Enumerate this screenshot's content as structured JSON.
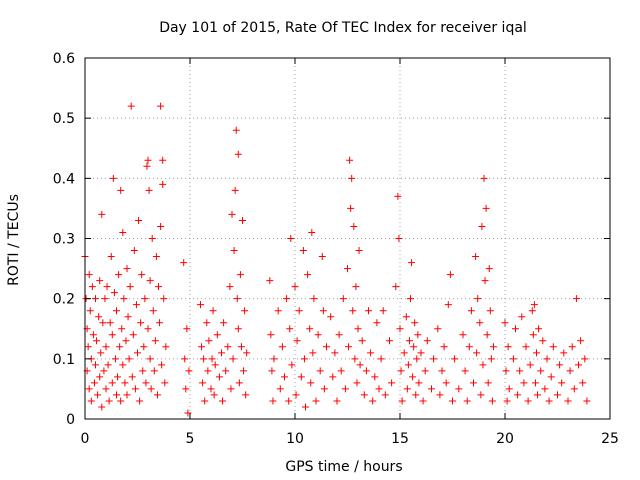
{
  "chart_data": {
    "type": "scatter",
    "title": "Day 101 of 2015, Rate Of TEC Index for receiver iqal",
    "xlabel": "GPS time / hours",
    "ylabel": "ROTI / TECUs",
    "xlim": [
      0,
      25
    ],
    "ylim": [
      0,
      0.6
    ],
    "xticks": [
      0,
      5,
      10,
      15,
      20,
      25
    ],
    "xtick_labels": [
      "0",
      "5",
      "10",
      "15",
      "20",
      "25"
    ],
    "yticks": [
      0,
      0.1,
      0.2,
      0.3,
      0.4,
      0.5,
      0.6
    ],
    "ytick_labels": [
      "0",
      "0.1",
      "0.2",
      "0.3",
      "0.4",
      "0.5",
      "0.6"
    ],
    "grid": true,
    "marker": "plus",
    "color": "#ff0000",
    "series": [
      {
        "name": "ROTI",
        "points": [
          [
            0.0,
            0.27
          ],
          [
            0.05,
            0.2
          ],
          [
            0.1,
            0.15
          ],
          [
            0.1,
            0.08
          ],
          [
            0.15,
            0.12
          ],
          [
            0.2,
            0.24
          ],
          [
            0.2,
            0.05
          ],
          [
            0.25,
            0.18
          ],
          [
            0.3,
            0.1
          ],
          [
            0.3,
            0.03
          ],
          [
            0.35,
            0.22
          ],
          [
            0.4,
            0.14
          ],
          [
            0.45,
            0.06
          ],
          [
            0.5,
            0.2
          ],
          [
            0.5,
            0.09
          ],
          [
            0.55,
            0.13
          ],
          [
            0.6,
            0.04
          ],
          [
            0.65,
            0.17
          ],
          [
            0.7,
            0.23
          ],
          [
            0.7,
            0.07
          ],
          [
            0.75,
            0.11
          ],
          [
            0.8,
            0.34
          ],
          [
            0.8,
            0.02
          ],
          [
            0.85,
            0.16
          ],
          [
            0.9,
            0.08
          ],
          [
            0.95,
            0.2
          ],
          [
            1.0,
            0.05
          ],
          [
            1.0,
            0.12
          ],
          [
            1.05,
            0.22
          ],
          [
            1.1,
            0.09
          ],
          [
            1.15,
            0.03
          ],
          [
            1.2,
            0.16
          ],
          [
            1.25,
            0.27
          ],
          [
            1.3,
            0.06
          ],
          [
            1.3,
            0.14
          ],
          [
            1.35,
            0.4
          ],
          [
            1.4,
            0.21
          ],
          [
            1.45,
            0.1
          ],
          [
            1.5,
            0.04
          ],
          [
            1.5,
            0.18
          ],
          [
            1.55,
            0.07
          ],
          [
            1.6,
            0.24
          ],
          [
            1.65,
            0.12
          ],
          [
            1.7,
            0.38
          ],
          [
            1.7,
            0.03
          ],
          [
            1.75,
            0.15
          ],
          [
            1.8,
            0.31
          ],
          [
            1.8,
            0.09
          ],
          [
            1.85,
            0.2
          ],
          [
            1.9,
            0.06
          ],
          [
            1.95,
            0.13
          ],
          [
            2.0,
            0.25
          ],
          [
            2.0,
            0.04
          ],
          [
            2.05,
            0.17
          ],
          [
            2.1,
            0.1
          ],
          [
            2.15,
            0.22
          ],
          [
            2.2,
            0.52
          ],
          [
            2.25,
            0.07
          ],
          [
            2.3,
            0.14
          ],
          [
            2.35,
            0.28
          ],
          [
            2.4,
            0.05
          ],
          [
            2.45,
            0.19
          ],
          [
            2.5,
            0.11
          ],
          [
            2.55,
            0.33
          ],
          [
            2.6,
            0.03
          ],
          [
            2.65,
            0.16
          ],
          [
            2.7,
            0.24
          ],
          [
            2.75,
            0.08
          ],
          [
            2.8,
            0.12
          ],
          [
            2.85,
            0.2
          ],
          [
            2.9,
            0.06
          ],
          [
            2.95,
            0.42
          ],
          [
            3.0,
            0.43
          ],
          [
            3.0,
            0.15
          ],
          [
            3.05,
            0.38
          ],
          [
            3.1,
            0.1
          ],
          [
            3.1,
            0.23
          ],
          [
            3.15,
            0.05
          ],
          [
            3.2,
            0.3
          ],
          [
            3.25,
            0.18
          ],
          [
            3.3,
            0.08
          ],
          [
            3.35,
            0.13
          ],
          [
            3.4,
            0.27
          ],
          [
            3.45,
            0.04
          ],
          [
            3.5,
            0.22
          ],
          [
            3.55,
            0.16
          ],
          [
            3.6,
            0.32
          ],
          [
            3.6,
            0.52
          ],
          [
            3.65,
            0.09
          ],
          [
            3.7,
            0.43
          ],
          [
            3.7,
            0.39
          ],
          [
            3.75,
            0.2
          ],
          [
            3.8,
            0.06
          ],
          [
            3.85,
            0.12
          ],
          [
            4.7,
            0.26
          ],
          [
            4.75,
            0.1
          ],
          [
            4.8,
            0.05
          ],
          [
            4.85,
            0.15
          ],
          [
            4.9,
            0.01
          ],
          [
            4.95,
            0.08
          ],
          [
            5.5,
            0.19
          ],
          [
            5.55,
            0.12
          ],
          [
            5.6,
            0.06
          ],
          [
            5.65,
            0.1
          ],
          [
            5.7,
            0.03
          ],
          [
            5.8,
            0.16
          ],
          [
            5.85,
            0.08
          ],
          [
            5.9,
            0.13
          ],
          [
            6.0,
            0.05
          ],
          [
            6.05,
            0.1
          ],
          [
            6.1,
            0.18
          ],
          [
            6.15,
            0.04
          ],
          [
            6.2,
            0.09
          ],
          [
            6.3,
            0.14
          ],
          [
            6.4,
            0.07
          ],
          [
            6.5,
            0.11
          ],
          [
            6.55,
            0.03
          ],
          [
            6.6,
            0.16
          ],
          [
            6.7,
            0.08
          ],
          [
            6.8,
            0.12
          ],
          [
            6.9,
            0.22
          ],
          [
            6.95,
            0.05
          ],
          [
            7.0,
            0.34
          ],
          [
            7.05,
            0.1
          ],
          [
            7.1,
            0.28
          ],
          [
            7.15,
            0.38
          ],
          [
            7.2,
            0.48
          ],
          [
            7.25,
            0.2
          ],
          [
            7.3,
            0.15
          ],
          [
            7.3,
            0.44
          ],
          [
            7.35,
            0.06
          ],
          [
            7.4,
            0.24
          ],
          [
            7.45,
            0.12
          ],
          [
            7.5,
            0.33
          ],
          [
            7.55,
            0.08
          ],
          [
            7.6,
            0.18
          ],
          [
            7.65,
            0.04
          ],
          [
            7.7,
            0.11
          ],
          [
            8.8,
            0.23
          ],
          [
            8.85,
            0.14
          ],
          [
            8.9,
            0.08
          ],
          [
            8.95,
            0.03
          ],
          [
            9.0,
            0.1
          ],
          [
            9.2,
            0.18
          ],
          [
            9.3,
            0.05
          ],
          [
            9.4,
            0.12
          ],
          [
            9.5,
            0.07
          ],
          [
            9.6,
            0.2
          ],
          [
            9.7,
            0.03
          ],
          [
            9.75,
            0.15
          ],
          [
            9.8,
            0.3
          ],
          [
            9.85,
            0.09
          ],
          [
            10.0,
            0.22
          ],
          [
            10.05,
            0.04
          ],
          [
            10.1,
            0.13
          ],
          [
            10.2,
            0.18
          ],
          [
            10.3,
            0.07
          ],
          [
            10.4,
            0.28
          ],
          [
            10.45,
            0.1
          ],
          [
            10.5,
            0.02
          ],
          [
            10.6,
            0.24
          ],
          [
            10.7,
            0.15
          ],
          [
            10.75,
            0.06
          ],
          [
            10.8,
            0.31
          ],
          [
            10.85,
            0.11
          ],
          [
            10.9,
            0.2
          ],
          [
            11.0,
            0.03
          ],
          [
            11.1,
            0.14
          ],
          [
            11.2,
            0.08
          ],
          [
            11.3,
            0.27
          ],
          [
            11.35,
            0.18
          ],
          [
            11.4,
            0.05
          ],
          [
            11.5,
            0.12
          ],
          [
            11.7,
            0.17
          ],
          [
            11.8,
            0.07
          ],
          [
            11.9,
            0.11
          ],
          [
            12.0,
            0.03
          ],
          [
            12.1,
            0.14
          ],
          [
            12.2,
            0.08
          ],
          [
            12.3,
            0.2
          ],
          [
            12.4,
            0.05
          ],
          [
            12.5,
            0.25
          ],
          [
            12.55,
            0.12
          ],
          [
            12.6,
            0.43
          ],
          [
            12.65,
            0.35
          ],
          [
            12.7,
            0.4
          ],
          [
            12.75,
            0.18
          ],
          [
            12.8,
            0.32
          ],
          [
            12.85,
            0.1
          ],
          [
            12.9,
            0.22
          ],
          [
            12.95,
            0.06
          ],
          [
            13.0,
            0.15
          ],
          [
            13.05,
            0.28
          ],
          [
            13.1,
            0.09
          ],
          [
            13.2,
            0.13
          ],
          [
            13.3,
            0.04
          ],
          [
            13.4,
            0.08
          ],
          [
            13.5,
            0.18
          ],
          [
            13.6,
            0.11
          ],
          [
            13.7,
            0.03
          ],
          [
            13.8,
            0.07
          ],
          [
            13.9,
            0.16
          ],
          [
            14.0,
            0.05
          ],
          [
            14.1,
            0.1
          ],
          [
            14.2,
            0.18
          ],
          [
            14.3,
            0.04
          ],
          [
            14.5,
            0.13
          ],
          [
            14.6,
            0.06
          ],
          [
            14.8,
            0.22
          ],
          [
            14.9,
            0.37
          ],
          [
            14.95,
            0.3
          ],
          [
            15.0,
            0.15
          ],
          [
            15.05,
            0.08
          ],
          [
            15.1,
            0.03
          ],
          [
            15.2,
            0.11
          ],
          [
            15.3,
            0.17
          ],
          [
            15.35,
            0.05
          ],
          [
            15.4,
            0.09
          ],
          [
            15.45,
            0.13
          ],
          [
            15.5,
            0.2
          ],
          [
            15.55,
            0.26
          ],
          [
            15.6,
            0.07
          ],
          [
            15.65,
            0.12
          ],
          [
            15.7,
            0.16
          ],
          [
            15.75,
            0.04
          ],
          [
            15.8,
            0.1
          ],
          [
            15.85,
            0.14
          ],
          [
            15.9,
            0.06
          ],
          [
            16.0,
            0.11
          ],
          [
            16.1,
            0.03
          ],
          [
            16.2,
            0.08
          ],
          [
            16.3,
            0.13
          ],
          [
            16.5,
            0.05
          ],
          [
            16.6,
            0.1
          ],
          [
            16.8,
            0.15
          ],
          [
            16.9,
            0.04
          ],
          [
            17.0,
            0.08
          ],
          [
            17.1,
            0.12
          ],
          [
            17.2,
            0.06
          ],
          [
            17.3,
            0.19
          ],
          [
            17.4,
            0.24
          ],
          [
            17.5,
            0.03
          ],
          [
            17.6,
            0.1
          ],
          [
            17.8,
            0.05
          ],
          [
            18.0,
            0.14
          ],
          [
            18.1,
            0.08
          ],
          [
            18.2,
            0.03
          ],
          [
            18.3,
            0.12
          ],
          [
            18.4,
            0.18
          ],
          [
            18.5,
            0.06
          ],
          [
            18.6,
            0.27
          ],
          [
            18.65,
            0.11
          ],
          [
            18.7,
            0.2
          ],
          [
            18.8,
            0.16
          ],
          [
            18.85,
            0.04
          ],
          [
            18.9,
            0.32
          ],
          [
            18.95,
            0.09
          ],
          [
            19.0,
            0.4
          ],
          [
            19.05,
            0.23
          ],
          [
            19.1,
            0.35
          ],
          [
            19.15,
            0.14
          ],
          [
            19.2,
            0.06
          ],
          [
            19.25,
            0.25
          ],
          [
            19.3,
            0.18
          ],
          [
            19.35,
            0.1
          ],
          [
            19.4,
            0.03
          ],
          [
            19.45,
            0.12
          ],
          [
            20.0,
            0.16
          ],
          [
            20.05,
            0.08
          ],
          [
            20.1,
            0.03
          ],
          [
            20.15,
            0.12
          ],
          [
            20.2,
            0.05
          ],
          [
            20.4,
            0.1
          ],
          [
            20.5,
            0.15
          ],
          [
            20.6,
            0.04
          ],
          [
            20.7,
            0.08
          ],
          [
            20.8,
            0.17
          ],
          [
            20.9,
            0.06
          ],
          [
            21.0,
            0.12
          ],
          [
            21.1,
            0.03
          ],
          [
            21.2,
            0.09
          ],
          [
            21.3,
            0.18
          ],
          [
            21.35,
            0.14
          ],
          [
            21.4,
            0.19
          ],
          [
            21.45,
            0.06
          ],
          [
            21.5,
            0.11
          ],
          [
            21.55,
            0.04
          ],
          [
            21.6,
            0.15
          ],
          [
            21.7,
            0.08
          ],
          [
            21.8,
            0.13
          ],
          [
            21.9,
            0.05
          ],
          [
            22.0,
            0.1
          ],
          [
            22.1,
            0.03
          ],
          [
            22.2,
            0.07
          ],
          [
            22.3,
            0.12
          ],
          [
            22.5,
            0.04
          ],
          [
            22.6,
            0.09
          ],
          [
            22.7,
            0.06
          ],
          [
            22.8,
            0.11
          ],
          [
            23.0,
            0.03
          ],
          [
            23.1,
            0.08
          ],
          [
            23.2,
            0.12
          ],
          [
            23.3,
            0.05
          ],
          [
            23.4,
            0.2
          ],
          [
            23.5,
            0.09
          ],
          [
            23.6,
            0.13
          ],
          [
            23.7,
            0.06
          ],
          [
            23.8,
            0.1
          ],
          [
            23.9,
            0.03
          ]
        ]
      }
    ]
  }
}
